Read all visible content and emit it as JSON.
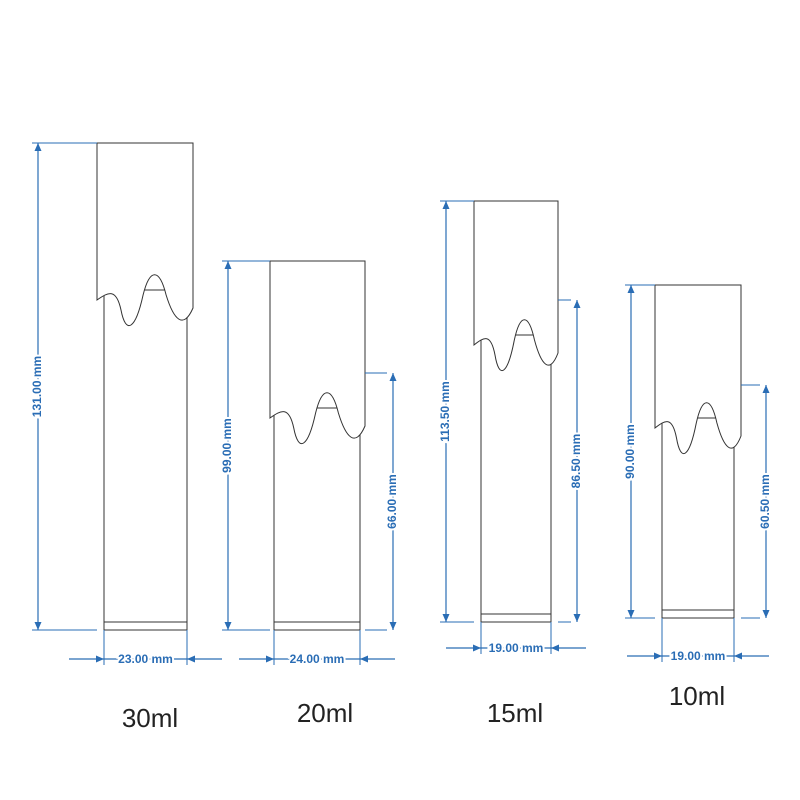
{
  "bottles": [
    {
      "height": "131.00 mm",
      "width": "23.00 mm",
      "capacity": "30ml"
    },
    {
      "height": "99.00 mm",
      "body_height": "66.00 mm",
      "width": "24.00 mm",
      "capacity": "20ml"
    },
    {
      "height": "113.50 mm",
      "body_height": "86.50 mm",
      "width": "19.00 mm",
      "capacity": "15ml"
    },
    {
      "height": "90.00 mm",
      "body_height": "60.50 mm",
      "width": "19.00 mm",
      "capacity": "10ml"
    }
  ]
}
